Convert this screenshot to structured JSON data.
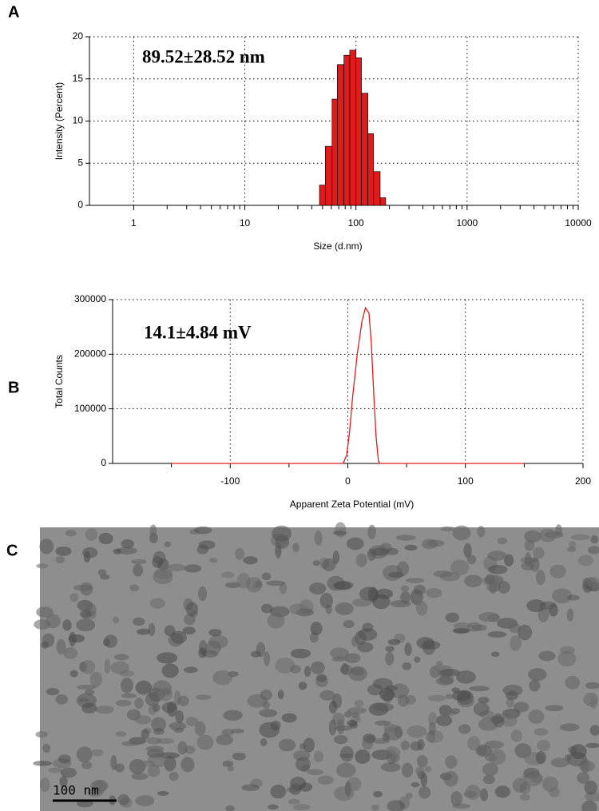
{
  "panels": [
    "A",
    "B",
    "C"
  ],
  "chart_data": [
    {
      "type": "histogram",
      "xlabel": "Size (d.nm)",
      "ylabel": "Intensity (Percent)",
      "annotation": "89.52±28.52 nm",
      "bins": [
        47,
        53,
        61,
        68,
        78,
        88,
        100,
        112,
        128,
        144,
        165,
        185
      ],
      "values": [
        2.4,
        7.0,
        12.6,
        16.7,
        17.8,
        18.4,
        17.5,
        13.3,
        8.5,
        4.0,
        0.9
      ],
      "color": "#e31a1c",
      "xscale": "log",
      "xlim": [
        0.4,
        10000
      ],
      "ylim": [
        0,
        20
      ],
      "xticks": [
        1,
        10,
        100,
        1000,
        10000
      ],
      "yticks": [
        0,
        5,
        10,
        15,
        20
      ],
      "xminorticks": [
        2,
        3,
        4,
        5,
        6,
        7,
        8,
        9,
        20,
        30,
        40,
        50,
        60,
        70,
        80,
        90,
        200,
        300,
        400,
        500,
        600,
        700,
        800,
        900,
        2000,
        3000,
        4000,
        5000,
        6000,
        7000,
        8000,
        9000
      ],
      "grid": true
    },
    {
      "type": "line",
      "xlabel": "Apparent Zeta Potential (mV)",
      "ylabel": "Total Counts",
      "annotation": "14.1±4.84 mV",
      "x": [
        -150,
        -4,
        -1,
        1.5,
        4,
        8,
        12,
        15,
        18,
        20,
        22,
        24,
        26,
        27,
        150
      ],
      "values": [
        0,
        0,
        15000,
        58000,
        120000,
        200000,
        260000,
        285000,
        275000,
        220000,
        130000,
        50000,
        5000,
        0,
        0
      ],
      "color": "#e31a1c",
      "xlim": [
        -200,
        200
      ],
      "ylim": [
        0,
        300000
      ],
      "xticks": [
        -100,
        0,
        100,
        200
      ],
      "yticks": [
        0,
        100000,
        200000,
        300000
      ],
      "xminorticks": [
        -150,
        -50,
        50,
        150
      ],
      "grid": true
    }
  ],
  "image": {
    "scale_bar": "100 nm"
  }
}
